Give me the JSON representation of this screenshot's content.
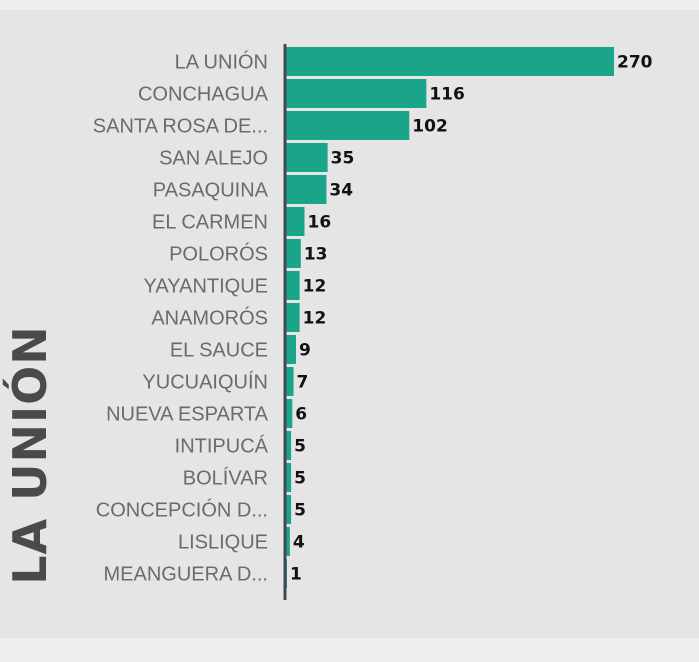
{
  "side_title": "LA UNIÓN",
  "colors": {
    "bar": "#1aa58a",
    "axis": "#3d4a55",
    "panel": "#e5e5e5"
  },
  "chart_data": {
    "type": "bar",
    "orientation": "horizontal",
    "categories": [
      "LA UNIÓN",
      "CONCHAGUA",
      "SANTA ROSA DE...",
      "SAN ALEJO",
      "PASAQUINA",
      "EL CARMEN",
      "POLORÓS",
      "YAYANTIQUE",
      "ANAMORÓS",
      "EL SAUCE",
      "YUCUAIQUÍN",
      "NUEVA ESPARTA",
      "INTIPUCÁ",
      "BOLÍVAR",
      "CONCEPCIÓN D...",
      "LISLIQUE",
      "MEANGUERA D..."
    ],
    "values": [
      270,
      116,
      102,
      35,
      34,
      16,
      13,
      12,
      12,
      9,
      7,
      6,
      5,
      5,
      5,
      4,
      1
    ],
    "value_labels": [
      "270",
      "116",
      "102",
      "35",
      "34",
      "16",
      "13",
      "12",
      "12",
      "9",
      "7",
      "6",
      "5",
      "5",
      "5",
      "4",
      "1"
    ],
    "xlim": [
      0,
      270
    ],
    "grid": false,
    "legend": "none"
  }
}
